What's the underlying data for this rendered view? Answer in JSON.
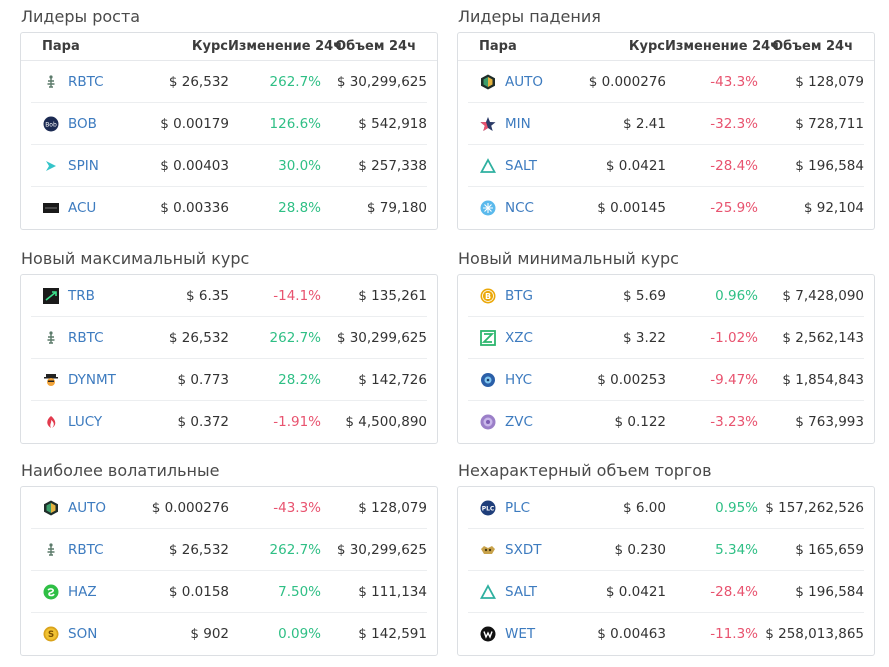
{
  "headers": {
    "pair": "Пара",
    "rate": "Курс",
    "change": "Изменение 24ч",
    "volume": "Объем 24ч"
  },
  "panels": [
    {
      "title": "Лидеры роста",
      "rows": [
        {
          "icon": "rbtc-icon",
          "symbol": "RBTC",
          "rate": "$ 26,532",
          "change": "262.7%",
          "dir": "up",
          "volume": "$ 30,299,625"
        },
        {
          "icon": "bob-icon",
          "symbol": "BOB",
          "rate": "$ 0.00179",
          "change": "126.6%",
          "dir": "up",
          "volume": "$ 542,918"
        },
        {
          "icon": "spin-icon",
          "symbol": "SPIN",
          "rate": "$ 0.00403",
          "change": "30.0%",
          "dir": "up",
          "volume": "$ 257,338"
        },
        {
          "icon": "acu-icon",
          "symbol": "ACU",
          "rate": "$ 0.00336",
          "change": "28.8%",
          "dir": "up",
          "volume": "$ 79,180"
        }
      ]
    },
    {
      "title": "Лидеры падения",
      "rows": [
        {
          "icon": "auto-icon",
          "symbol": "AUTO",
          "rate": "$ 0.000276",
          "change": "-43.3%",
          "dir": "down",
          "volume": "$ 128,079"
        },
        {
          "icon": "min-icon",
          "symbol": "MIN",
          "rate": "$ 2.41",
          "change": "-32.3%",
          "dir": "down",
          "volume": "$ 728,711"
        },
        {
          "icon": "salt-icon",
          "symbol": "SALT",
          "rate": "$ 0.0421",
          "change": "-28.4%",
          "dir": "down",
          "volume": "$ 196,584"
        },
        {
          "icon": "ncc-icon",
          "symbol": "NCC",
          "rate": "$ 0.00145",
          "change": "-25.9%",
          "dir": "down",
          "volume": "$ 92,104"
        }
      ]
    },
    {
      "title": "Новый максимальный курс",
      "rows": [
        {
          "icon": "trb-icon",
          "symbol": "TRB",
          "rate": "$ 6.35",
          "change": "-14.1%",
          "dir": "down",
          "volume": "$ 135,261"
        },
        {
          "icon": "rbtc-icon",
          "symbol": "RBTC",
          "rate": "$ 26,532",
          "change": "262.7%",
          "dir": "up",
          "volume": "$ 30,299,625"
        },
        {
          "icon": "dynmt-icon",
          "symbol": "DYNMT",
          "rate": "$ 0.773",
          "change": "28.2%",
          "dir": "up",
          "volume": "$ 142,726"
        },
        {
          "icon": "lucy-icon",
          "symbol": "LUCY",
          "rate": "$ 0.372",
          "change": "-1.91%",
          "dir": "down",
          "volume": "$ 4,500,890"
        }
      ]
    },
    {
      "title": "Новый минимальный курс",
      "rows": [
        {
          "icon": "btg-icon",
          "symbol": "BTG",
          "rate": "$ 5.69",
          "change": "0.96%",
          "dir": "up",
          "volume": "$ 7,428,090"
        },
        {
          "icon": "xzc-icon",
          "symbol": "XZC",
          "rate": "$ 3.22",
          "change": "-1.02%",
          "dir": "down",
          "volume": "$ 2,562,143"
        },
        {
          "icon": "hyc-icon",
          "symbol": "HYC",
          "rate": "$ 0.00253",
          "change": "-9.47%",
          "dir": "down",
          "volume": "$ 1,854,843"
        },
        {
          "icon": "zvc-icon",
          "symbol": "ZVC",
          "rate": "$ 0.122",
          "change": "-3.23%",
          "dir": "down",
          "volume": "$ 763,993"
        }
      ]
    },
    {
      "title": "Наиболее волатильные",
      "rows": [
        {
          "icon": "auto-icon",
          "symbol": "AUTO",
          "rate": "$ 0.000276",
          "change": "-43.3%",
          "dir": "down",
          "volume": "$ 128,079"
        },
        {
          "icon": "rbtc-icon",
          "symbol": "RBTC",
          "rate": "$ 26,532",
          "change": "262.7%",
          "dir": "up",
          "volume": "$ 30,299,625"
        },
        {
          "icon": "haz-icon",
          "symbol": "HAZ",
          "rate": "$ 0.0158",
          "change": "7.50%",
          "dir": "up",
          "volume": "$ 111,134"
        },
        {
          "icon": "son-icon",
          "symbol": "SON",
          "rate": "$ 902",
          "change": "0.09%",
          "dir": "up",
          "volume": "$ 142,591"
        }
      ]
    },
    {
      "title": "Нехарактерный объем торгов",
      "rows": [
        {
          "icon": "plc-icon",
          "symbol": "PLC",
          "rate": "$ 6.00",
          "change": "0.95%",
          "dir": "up",
          "volume": "$ 157,262,526"
        },
        {
          "icon": "sxdt-icon",
          "symbol": "SXDT",
          "rate": "$ 0.230",
          "change": "5.34%",
          "dir": "up",
          "volume": "$ 165,659"
        },
        {
          "icon": "salt-icon",
          "symbol": "SALT",
          "rate": "$ 0.0421",
          "change": "-28.4%",
          "dir": "down",
          "volume": "$ 196,584"
        },
        {
          "icon": "wet-icon",
          "symbol": "WET",
          "rate": "$ 0.00463",
          "change": "-11.3%",
          "dir": "down",
          "volume": "$ 258,013,865"
        }
      ]
    }
  ],
  "colors": {
    "up": "#2fbf85",
    "down": "#e8536f",
    "symbol": "#3d7bbf"
  }
}
